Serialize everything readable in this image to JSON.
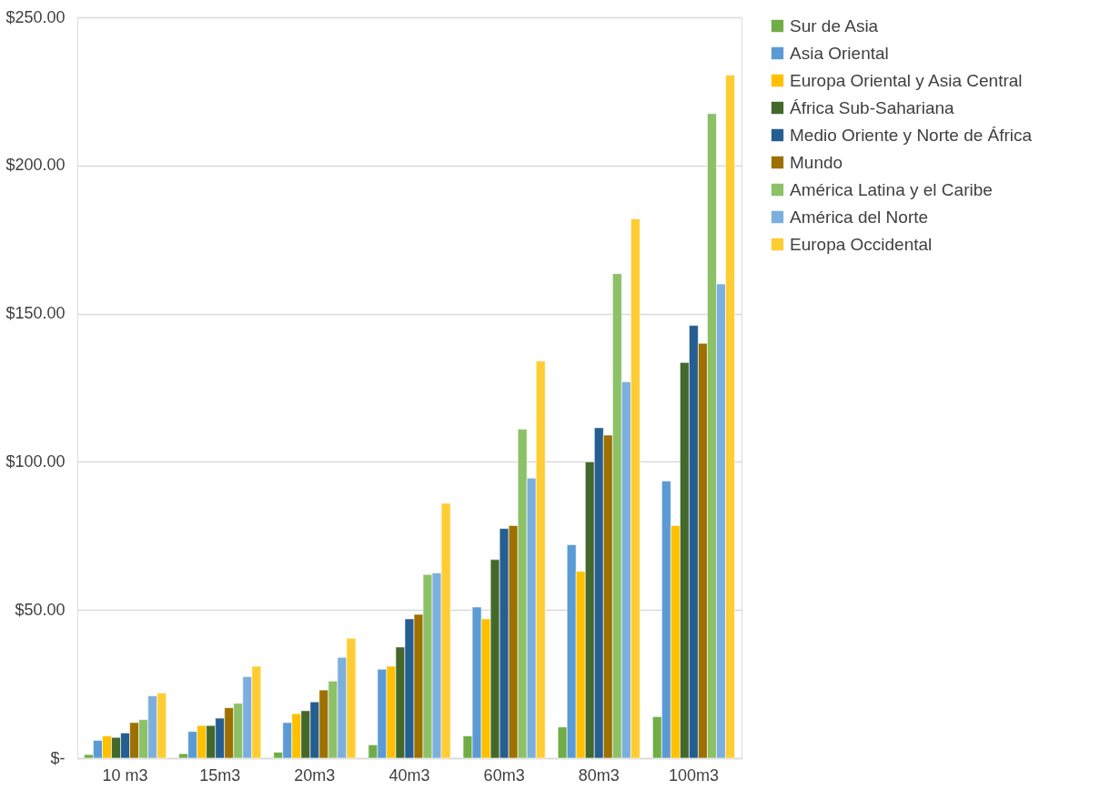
{
  "chart_data": {
    "type": "bar",
    "categories": [
      "10 m3",
      "15m3",
      "20m3",
      "40m3",
      "60m3",
      "80m3",
      "100m3"
    ],
    "series": [
      {
        "name": "Sur de Asia",
        "color": "#70ad47",
        "values": [
          1.2,
          1.5,
          2,
          4.5,
          7.5,
          10.5,
          14
        ]
      },
      {
        "name": "Asia Oriental",
        "color": "#5b9bd5",
        "values": [
          6,
          9,
          12,
          30,
          51,
          72,
          93.5
        ]
      },
      {
        "name": "Europa Oriental y Asia Central",
        "color": "#ffc000",
        "values": [
          7.5,
          11,
          15,
          31,
          47,
          63,
          78.5
        ]
      },
      {
        "name": "África Sub-Sahariana",
        "color": "#43682b",
        "values": [
          7,
          11,
          16,
          37.5,
          67,
          100,
          133.5
        ]
      },
      {
        "name": "Medio Oriente y Norte de África",
        "color": "#255e91",
        "values": [
          8.5,
          13.5,
          19,
          47,
          77.5,
          111.5,
          146
        ]
      },
      {
        "name": "Mundo",
        "color": "#9e7000",
        "values": [
          12,
          17,
          23,
          48.5,
          78.5,
          109,
          140
        ]
      },
      {
        "name": "América Latina y el Caribe",
        "color": "#8cc168",
        "values": [
          13,
          18.5,
          26,
          62,
          111,
          163.5,
          217.5
        ]
      },
      {
        "name": "América del Norte",
        "color": "#7cafdd",
        "values": [
          21,
          27.5,
          34,
          62.5,
          94.5,
          127,
          160
        ]
      },
      {
        "name": "Europa Occidental",
        "color": "#ffcd33",
        "values": [
          22,
          31,
          40.5,
          86,
          134,
          182,
          230.5
        ]
      }
    ],
    "ylim": [
      0,
      250
    ],
    "yticks": [
      {
        "value": 0,
        "label": "$-"
      },
      {
        "value": 50,
        "label": "$50.00"
      },
      {
        "value": 100,
        "label": "$100.00"
      },
      {
        "value": 150,
        "label": "$150.00"
      },
      {
        "value": 200,
        "label": "$200.00"
      },
      {
        "value": 250,
        "label": "$250.00"
      }
    ],
    "grid": "y",
    "legend": "right"
  }
}
